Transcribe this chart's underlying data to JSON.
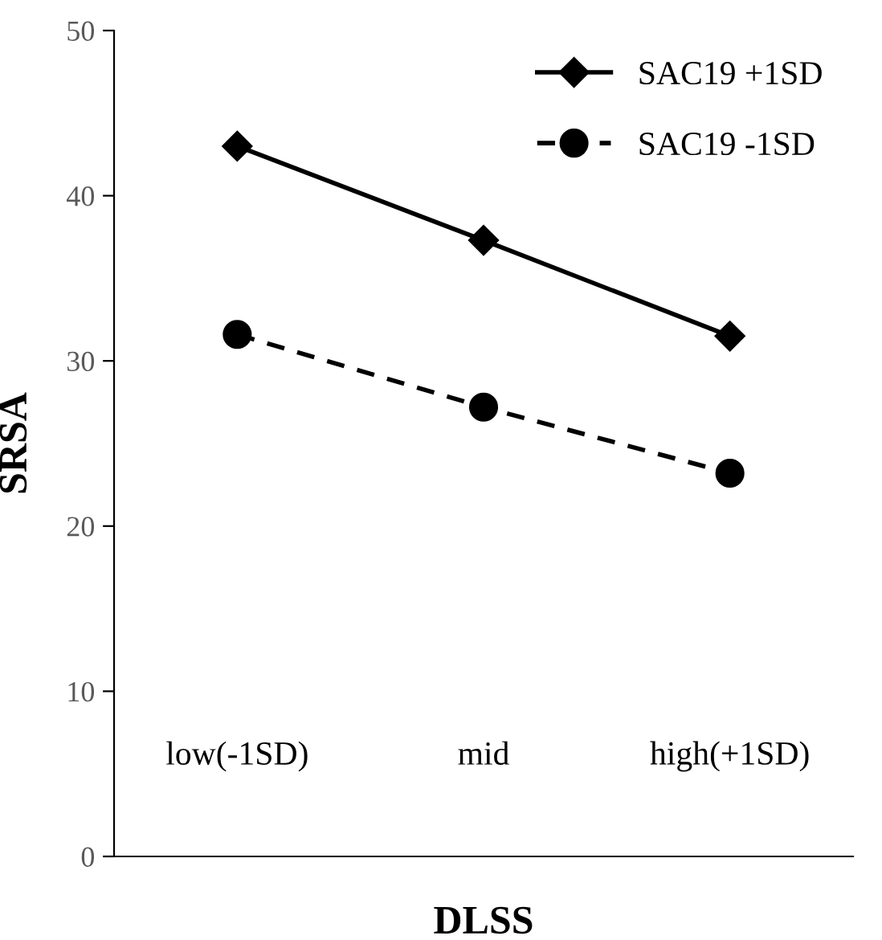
{
  "chart_data": {
    "type": "line",
    "xlabel": "DLSS",
    "ylabel": "SRSA",
    "categories": [
      "low(-1SD)",
      "mid",
      "high(+1SD)"
    ],
    "series": [
      {
        "name": "SAC19 +1SD",
        "color": "#000000",
        "marker": "diamond",
        "line_style": "solid",
        "values": [
          43.0,
          37.3,
          31.5
        ]
      },
      {
        "name": "SAC19 -1SD",
        "color": "#000000",
        "marker": "circle",
        "line_style": "dashed",
        "values": [
          31.6,
          27.2,
          23.2
        ]
      }
    ],
    "ylim": [
      0,
      50
    ],
    "yticks": [
      0,
      10,
      20,
      30,
      40,
      50
    ],
    "grid": false,
    "legend": "top right"
  }
}
